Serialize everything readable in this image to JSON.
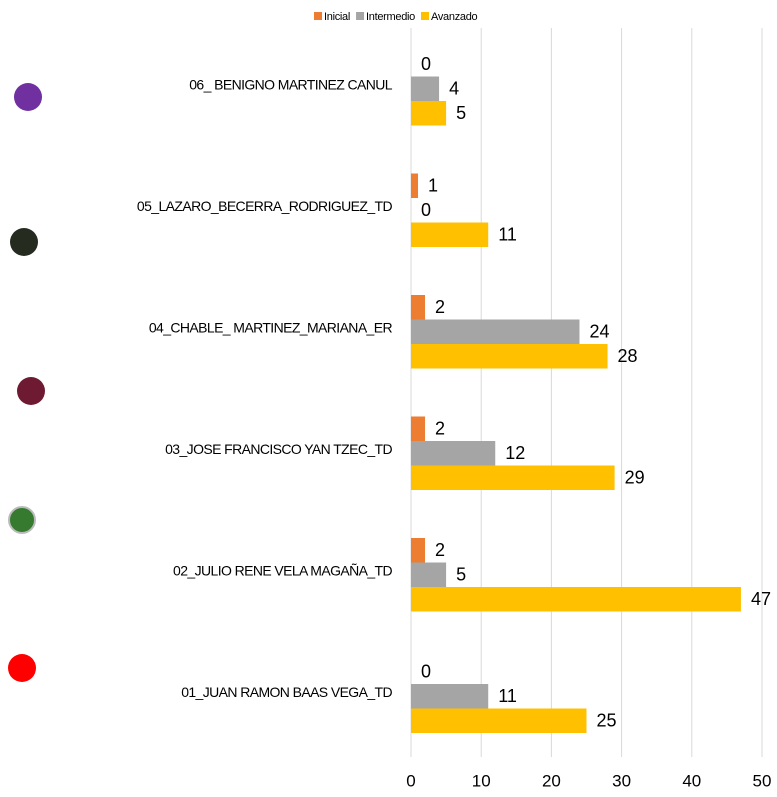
{
  "chart_data": {
    "type": "hbar",
    "categories": [
      "06_ BENIGNO MARTINEZ CANUL",
      "05_LAZARO_BECERRA_RODRIGUEZ_TD",
      "04_CHABLE_ MARTINEZ_MARIANA_ER",
      "03_JOSE FRANCISCO YAN TZEC_TD",
      "02_JULIO RENE VELA MAGAÑA_TD",
      "01_JUAN RAMON BAAS VEGA_TD"
    ],
    "series": [
      {
        "name": "Inicial",
        "color": "#ed7d31",
        "values": [
          0,
          1,
          2,
          2,
          2,
          0
        ]
      },
      {
        "name": "Intermedio",
        "color": "#a5a5a5",
        "values": [
          4,
          0,
          24,
          12,
          5,
          11
        ]
      },
      {
        "name": "Avanzado",
        "color": "#ffc000",
        "values": [
          5,
          11,
          28,
          29,
          47,
          25
        ]
      }
    ],
    "xlim": [
      0,
      50
    ],
    "xticks": [
      0,
      10,
      20,
      30,
      40,
      50
    ],
    "grid": true,
    "legend": "top"
  }
}
